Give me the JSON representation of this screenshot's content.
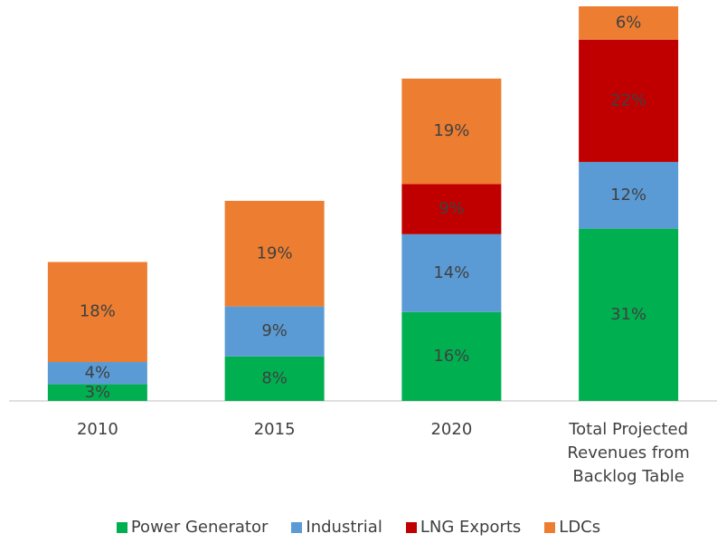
{
  "chart_data": {
    "type": "stacked_bar",
    "categories": [
      "2010",
      "2015",
      "2020",
      "Total Projected Revenues from Backlog Table"
    ],
    "series": [
      {
        "name": "Power Generator",
        "color": "#00b050",
        "values": [
          3,
          8,
          16,
          31
        ],
        "value_labels": [
          "3%",
          "8%",
          "16%",
          "31%"
        ]
      },
      {
        "name": "Industrial",
        "color": "#5b9bd5",
        "values": [
          4,
          9,
          14,
          12
        ],
        "value_labels": [
          "4%",
          "9%",
          "14%",
          "12%"
        ]
      },
      {
        "name": "LNG Exports",
        "color": "#c00000",
        "values": [
          null,
          null,
          9,
          22
        ],
        "value_labels": [
          null,
          null,
          "9%",
          "22%"
        ]
      },
      {
        "name": "LDCs",
        "color": "#ed7d31",
        "values": [
          18,
          19,
          19,
          6
        ],
        "value_labels": [
          "18%",
          "19%",
          "19%",
          "6%"
        ]
      }
    ],
    "legend": "bottom"
  }
}
